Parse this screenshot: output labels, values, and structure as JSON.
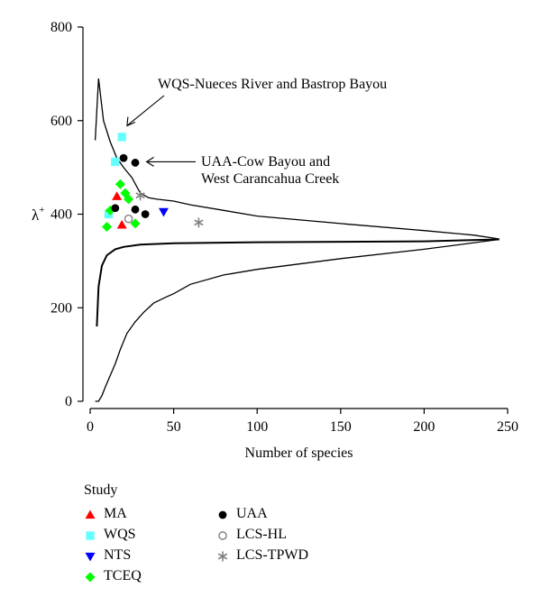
{
  "chart_data": {
    "type": "scatter",
    "title": "",
    "xlabel": "Number of species",
    "ylabel_symbol": "λ",
    "ylabel_superscript": "+",
    "xlim": [
      0,
      250
    ],
    "ylim": [
      0,
      800
    ],
    "x_ticks": [
      0,
      50,
      100,
      150,
      200,
      250
    ],
    "y_ticks": [
      0,
      200,
      400,
      600,
      800
    ],
    "grid": false,
    "legend_placement": "below",
    "curves": {
      "upper_bound": [
        [
          3,
          558
        ],
        [
          5,
          690
        ],
        [
          8,
          600
        ],
        [
          12,
          555
        ],
        [
          16,
          520
        ],
        [
          20,
          500
        ],
        [
          25,
          478
        ],
        [
          30,
          445
        ],
        [
          35,
          435
        ],
        [
          40,
          432
        ],
        [
          50,
          428
        ],
        [
          60,
          420
        ],
        [
          80,
          408
        ],
        [
          100,
          396
        ],
        [
          150,
          380
        ],
        [
          200,
          365
        ],
        [
          230,
          355
        ],
        [
          245,
          347
        ]
      ],
      "mean": [
        [
          4,
          160
        ],
        [
          5,
          245
        ],
        [
          7,
          290
        ],
        [
          10,
          312
        ],
        [
          15,
          325
        ],
        [
          20,
          330
        ],
        [
          30,
          335
        ],
        [
          50,
          338
        ],
        [
          100,
          340
        ],
        [
          150,
          341
        ],
        [
          200,
          342
        ],
        [
          245,
          346
        ]
      ],
      "lower_bound": [
        [
          3,
          0
        ],
        [
          5,
          0
        ],
        [
          7,
          12
        ],
        [
          9,
          30
        ],
        [
          12,
          55
        ],
        [
          15,
          80
        ],
        [
          18,
          110
        ],
        [
          22,
          145
        ],
        [
          27,
          170
        ],
        [
          32,
          190
        ],
        [
          38,
          210
        ],
        [
          45,
          222
        ],
        [
          50,
          230
        ],
        [
          60,
          250
        ],
        [
          80,
          270
        ],
        [
          100,
          282
        ],
        [
          150,
          305
        ],
        [
          200,
          325
        ],
        [
          245,
          346
        ]
      ]
    },
    "series": [
      {
        "name": "MA",
        "marker": "triangle-up",
        "color": "#ff0000",
        "points": [
          [
            16,
            438
          ],
          [
            19,
            377
          ]
        ]
      },
      {
        "name": "WQS",
        "marker": "square",
        "color": "#66ffff",
        "points": [
          [
            19,
            565
          ],
          [
            15,
            512
          ],
          [
            11,
            400
          ]
        ]
      },
      {
        "name": "NTS",
        "marker": "triangle-down",
        "color": "#0000ff",
        "points": [
          [
            44,
            405
          ]
        ]
      },
      {
        "name": "TCEQ",
        "marker": "diamond",
        "color": "#00ff00",
        "points": [
          [
            18,
            464
          ],
          [
            21,
            445
          ],
          [
            23,
            432
          ],
          [
            12,
            408
          ],
          [
            27,
            380
          ],
          [
            10,
            373
          ]
        ]
      },
      {
        "name": "UAA",
        "marker": "circle",
        "color": "#000000",
        "points": [
          [
            20,
            520
          ],
          [
            27,
            510
          ],
          [
            15,
            413
          ],
          [
            27,
            410
          ],
          [
            33,
            400
          ]
        ]
      },
      {
        "name": "LCS-HL",
        "marker": "open-circle",
        "color": "#808080",
        "points": [
          [
            23,
            390
          ]
        ]
      },
      {
        "name": "LCS-TPWD",
        "marker": "asterisk",
        "color": "#808080",
        "points": [
          [
            30,
            440
          ],
          [
            65,
            382
          ]
        ]
      }
    ],
    "annotations": [
      {
        "id": "wqs",
        "lines": [
          "WQS-Nueces River and Bastrop Bayou"
        ],
        "target": [
          21,
          585
        ]
      },
      {
        "id": "uaa",
        "lines": [
          "UAA-Cow Bayou and",
          "West Carancahua Creek"
        ],
        "target": [
          30,
          512
        ]
      }
    ]
  },
  "legend": {
    "title": "Study",
    "items": [
      {
        "label": "MA",
        "marker": "triangle-up",
        "color": "#ff0000"
      },
      {
        "label": "WQS",
        "marker": "square",
        "color": "#66ffff"
      },
      {
        "label": "NTS",
        "marker": "triangle-down",
        "color": "#0000ff"
      },
      {
        "label": "TCEQ",
        "marker": "diamond",
        "color": "#00ff00"
      },
      {
        "label": "UAA",
        "marker": "circle",
        "color": "#000000"
      },
      {
        "label": "LCS-HL",
        "marker": "open-circle",
        "color": "#808080"
      },
      {
        "label": "LCS-TPWD",
        "marker": "asterisk",
        "color": "#808080"
      }
    ]
  }
}
